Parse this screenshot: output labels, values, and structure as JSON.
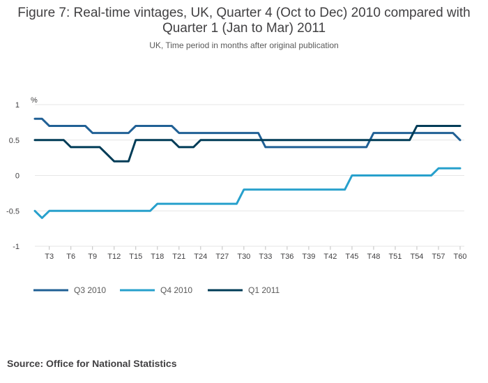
{
  "chart_data": {
    "type": "line",
    "title": "Figure 7: Real-time vintages, UK, Quarter 4 (Oct to Dec) 2010 compared with Quarter 1 (Jan to Mar) 2011",
    "title_line1": "Figure 7: Real-time vintages, UK, Quarter 4 (Oct to Dec) 2010 compared with",
    "title_line2": "Quarter 1 (Jan to Mar) 2011",
    "subtitle": "UK, Time period in months after original publication",
    "ylabel": "%",
    "ylim": [
      -1,
      1
    ],
    "yticks": [
      1,
      0.5,
      0,
      -0.5,
      -1
    ],
    "ytick_labels": [
      "1",
      "0.5",
      "0",
      "-0.5",
      "-1"
    ],
    "x": [
      "T1",
      "T2",
      "T3",
      "T4",
      "T5",
      "T6",
      "T7",
      "T8",
      "T9",
      "T10",
      "T11",
      "T12",
      "T13",
      "T14",
      "T15",
      "T16",
      "T17",
      "T18",
      "T19",
      "T20",
      "T21",
      "T22",
      "T23",
      "T24",
      "T25",
      "T26",
      "T27",
      "T28",
      "T29",
      "T30",
      "T31",
      "T32",
      "T33",
      "T34",
      "T35",
      "T36",
      "T37",
      "T38",
      "T39",
      "T40",
      "T41",
      "T42",
      "T43",
      "T44",
      "T45",
      "T46",
      "T47",
      "T48",
      "T49",
      "T50",
      "T51",
      "T52",
      "T53",
      "T54",
      "T55",
      "T56",
      "T57",
      "T58",
      "T59",
      "T60"
    ],
    "xtick_labels": [
      "T3",
      "T6",
      "T9",
      "T12",
      "T15",
      "T18",
      "T21",
      "T24",
      "T27",
      "T30",
      "T33",
      "T36",
      "T39",
      "T42",
      "T45",
      "T48",
      "T51",
      "T54",
      "T57",
      "T60"
    ],
    "series": [
      {
        "name": "Q3 2010",
        "color": "#206095",
        "values": [
          0.8,
          0.8,
          0.7,
          0.7,
          0.7,
          0.7,
          0.7,
          0.7,
          0.6,
          0.6,
          0.6,
          0.6,
          0.6,
          0.6,
          0.7,
          0.7,
          0.7,
          0.7,
          0.7,
          0.7,
          0.6,
          0.6,
          0.6,
          0.6,
          0.6,
          0.6,
          0.6,
          0.6,
          0.6,
          0.6,
          0.6,
          0.6,
          0.4,
          0.4,
          0.4,
          0.4,
          0.4,
          0.4,
          0.4,
          0.4,
          0.4,
          0.4,
          0.4,
          0.4,
          0.4,
          0.4,
          0.4,
          0.6,
          0.6,
          0.6,
          0.6,
          0.6,
          0.6,
          0.6,
          0.6,
          0.6,
          0.6,
          0.6,
          0.6,
          0.5
        ]
      },
      {
        "name": "Q4 2010",
        "color": "#27a0cc",
        "values": [
          -0.5,
          -0.6,
          -0.5,
          -0.5,
          -0.5,
          -0.5,
          -0.5,
          -0.5,
          -0.5,
          -0.5,
          -0.5,
          -0.5,
          -0.5,
          -0.5,
          -0.5,
          -0.5,
          -0.5,
          -0.4,
          -0.4,
          -0.4,
          -0.4,
          -0.4,
          -0.4,
          -0.4,
          -0.4,
          -0.4,
          -0.4,
          -0.4,
          -0.4,
          -0.2,
          -0.2,
          -0.2,
          -0.2,
          -0.2,
          -0.2,
          -0.2,
          -0.2,
          -0.2,
          -0.2,
          -0.2,
          -0.2,
          -0.2,
          -0.2,
          -0.2,
          0,
          0,
          0,
          0,
          0,
          0,
          0,
          0,
          0,
          0,
          0,
          0,
          0.1,
          0.1,
          0.1,
          0.1
        ]
      },
      {
        "name": "Q1 2011",
        "color": "#003c57",
        "values": [
          0.5,
          0.5,
          0.5,
          0.5,
          0.5,
          0.4,
          0.4,
          0.4,
          0.4,
          0.4,
          0.3,
          0.2,
          0.2,
          0.2,
          0.5,
          0.5,
          0.5,
          0.5,
          0.5,
          0.5,
          0.4,
          0.4,
          0.4,
          0.5,
          0.5,
          0.5,
          0.5,
          0.5,
          0.5,
          0.5,
          0.5,
          0.5,
          0.5,
          0.5,
          0.5,
          0.5,
          0.5,
          0.5,
          0.5,
          0.5,
          0.5,
          0.5,
          0.5,
          0.5,
          0.5,
          0.5,
          0.5,
          0.5,
          0.5,
          0.5,
          0.5,
          0.5,
          0.5,
          0.7,
          0.7,
          0.7,
          0.7,
          0.7,
          0.7,
          0.7
        ]
      }
    ],
    "legend": [
      "Q3 2010",
      "Q4 2010",
      "Q1 2011"
    ],
    "legend_position": "bottom-left",
    "grid": true
  },
  "source": "Source: Office for National Statistics"
}
